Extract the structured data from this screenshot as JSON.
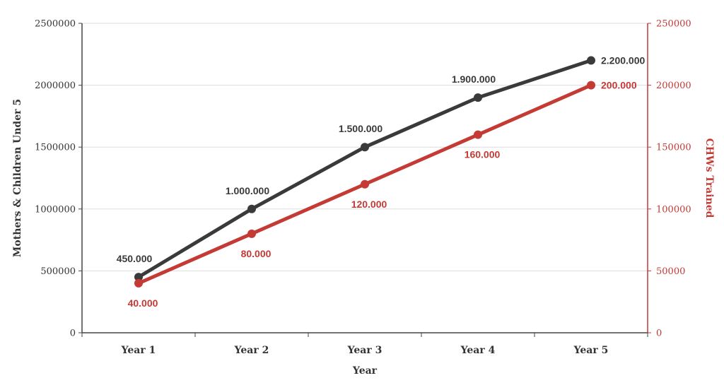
{
  "chart_data": {
    "type": "line",
    "categories": [
      "Year 1",
      "Year 2",
      "Year 3",
      "Year 4",
      "Year 5"
    ],
    "xlabel": "Year",
    "series": [
      {
        "name": "Mothers & Children Under 5",
        "axis": "left",
        "color": "#3a3a3a",
        "values": [
          450000,
          1000000,
          1500000,
          1900000,
          2200000
        ],
        "labels": [
          "450.000",
          "1.000.000",
          "1.500.000",
          "1.900.000",
          "2.200.000"
        ]
      },
      {
        "name": "CHWs Trained",
        "axis": "right",
        "color": "#c43a35",
        "values": [
          40000,
          80000,
          120000,
          160000,
          200000
        ],
        "labels": [
          "40.000",
          "80.000",
          "120.000",
          "160.000",
          "200.000"
        ]
      }
    ],
    "y_left": {
      "label": "Mothers & Children Under 5",
      "range": [
        0,
        2500000
      ],
      "ticks": [
        "0",
        "500000",
        "1000000",
        "1500000",
        "2000000",
        "2500000"
      ]
    },
    "y_right": {
      "label": "CHWs Trained",
      "range": [
        0,
        250000
      ],
      "ticks": [
        "0",
        "50000",
        "100000",
        "150000",
        "200000",
        "250000"
      ],
      "color": "#c43a35"
    },
    "grid": true
  }
}
